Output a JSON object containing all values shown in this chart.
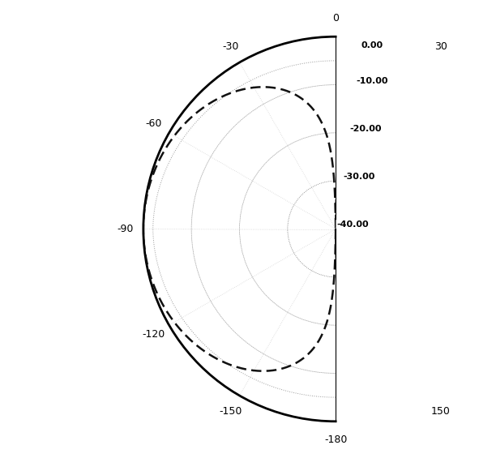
{
  "rmin": -40,
  "rmax": 0,
  "r_ring_labels": [
    "-10.00",
    "-20.00",
    "-30.00",
    "-40.00"
  ],
  "r_ring_values": [
    -10,
    -20,
    -30,
    -40
  ],
  "r_outer_label": "0.00",
  "angle_ticks_deg": [
    0,
    30,
    60,
    90,
    120,
    150,
    -180,
    -150,
    -120,
    -90,
    -60,
    -30
  ],
  "angle_tick_labels": [
    "0",
    "30",
    "60",
    "90",
    "120",
    "150",
    "-180",
    "-150",
    "-120",
    "-90",
    "-60",
    "-30"
  ],
  "grid_color": "#aaaaaa",
  "grid_linestyle": "dotted",
  "grid_linewidth": 0.6,
  "outer_circle_color": "#000000",
  "outer_circle_lw": 2.0,
  "pattern_dotted_color": "#999999",
  "pattern_dotted_lw": 0.7,
  "pattern_dashed_color": "#111111",
  "pattern_dashed_lw": 1.8,
  "label_fontsize": 8,
  "tick_fontsize": 9,
  "fig_width": 5.91,
  "fig_height": 5.65,
  "dpi": 100
}
